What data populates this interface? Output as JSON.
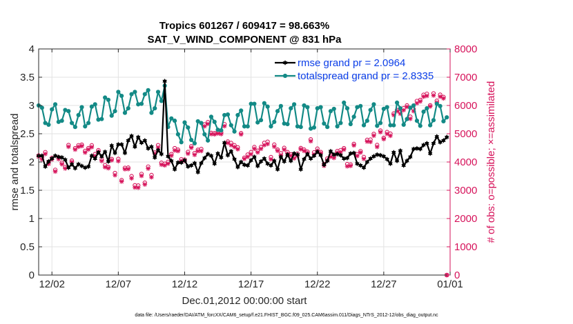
{
  "chart_data": {
    "type": "line",
    "title": "Tropics 601267 / 609417 = 98.663%",
    "subtitle": "SAT_V_WIND_COMPONENT @ 831 hPa",
    "xlabel": "Dec.01,2012 00:00:00 start",
    "ylabel_left": "rmse and totalspread",
    "ylabel_right": "# of obs: o=possible; ×=assimilated",
    "xlim": [
      0,
      31
    ],
    "ylim_left": [
      0,
      4
    ],
    "ylim_right": [
      0,
      8000
    ],
    "x_tick_values": [
      1,
      6,
      11,
      16,
      21,
      26,
      31
    ],
    "x_tick_labels": [
      "12/02",
      "12/07",
      "12/12",
      "12/17",
      "12/22",
      "12/27",
      "01/01"
    ],
    "y_left_ticks": [
      "0",
      "0.5",
      "1",
      "1.5",
      "2",
      "2.5",
      "3",
      "3.5",
      "4"
    ],
    "y_right_ticks": [
      "0",
      "1000",
      "2000",
      "3000",
      "4000",
      "5000",
      "6000",
      "7000",
      "8000"
    ],
    "grid": true,
    "legend_position": "top-right",
    "colors": {
      "rmse": "#000000",
      "spread": "#138a86",
      "obs": "#d6125a",
      "legend_text": "#0b3ee8"
    },
    "series": [
      {
        "name": "rmse grand pr = 2.0964",
        "axis": "left",
        "color": "#000000",
        "marker": "hexagram",
        "values": []
      },
      {
        "name": "totalspread grand pr = 2.8335",
        "axis": "left",
        "color": "#138a86",
        "marker": "circle",
        "values": []
      },
      {
        "name": "possible obs",
        "axis": "right",
        "color": "#d6125a",
        "marker": "circle",
        "values": []
      },
      {
        "name": "assimilated obs",
        "axis": "right",
        "color": "#d6125a",
        "marker": "star",
        "values": []
      }
    ]
  },
  "footer": "data file: /Users/raeder/DAI/ATM_forcXX/CAM6_setup/f.e21.FHIST_BGC.f09_025.CAM6assim.011/Diags_NTrS_2012-12/obs_diag_output.nc"
}
